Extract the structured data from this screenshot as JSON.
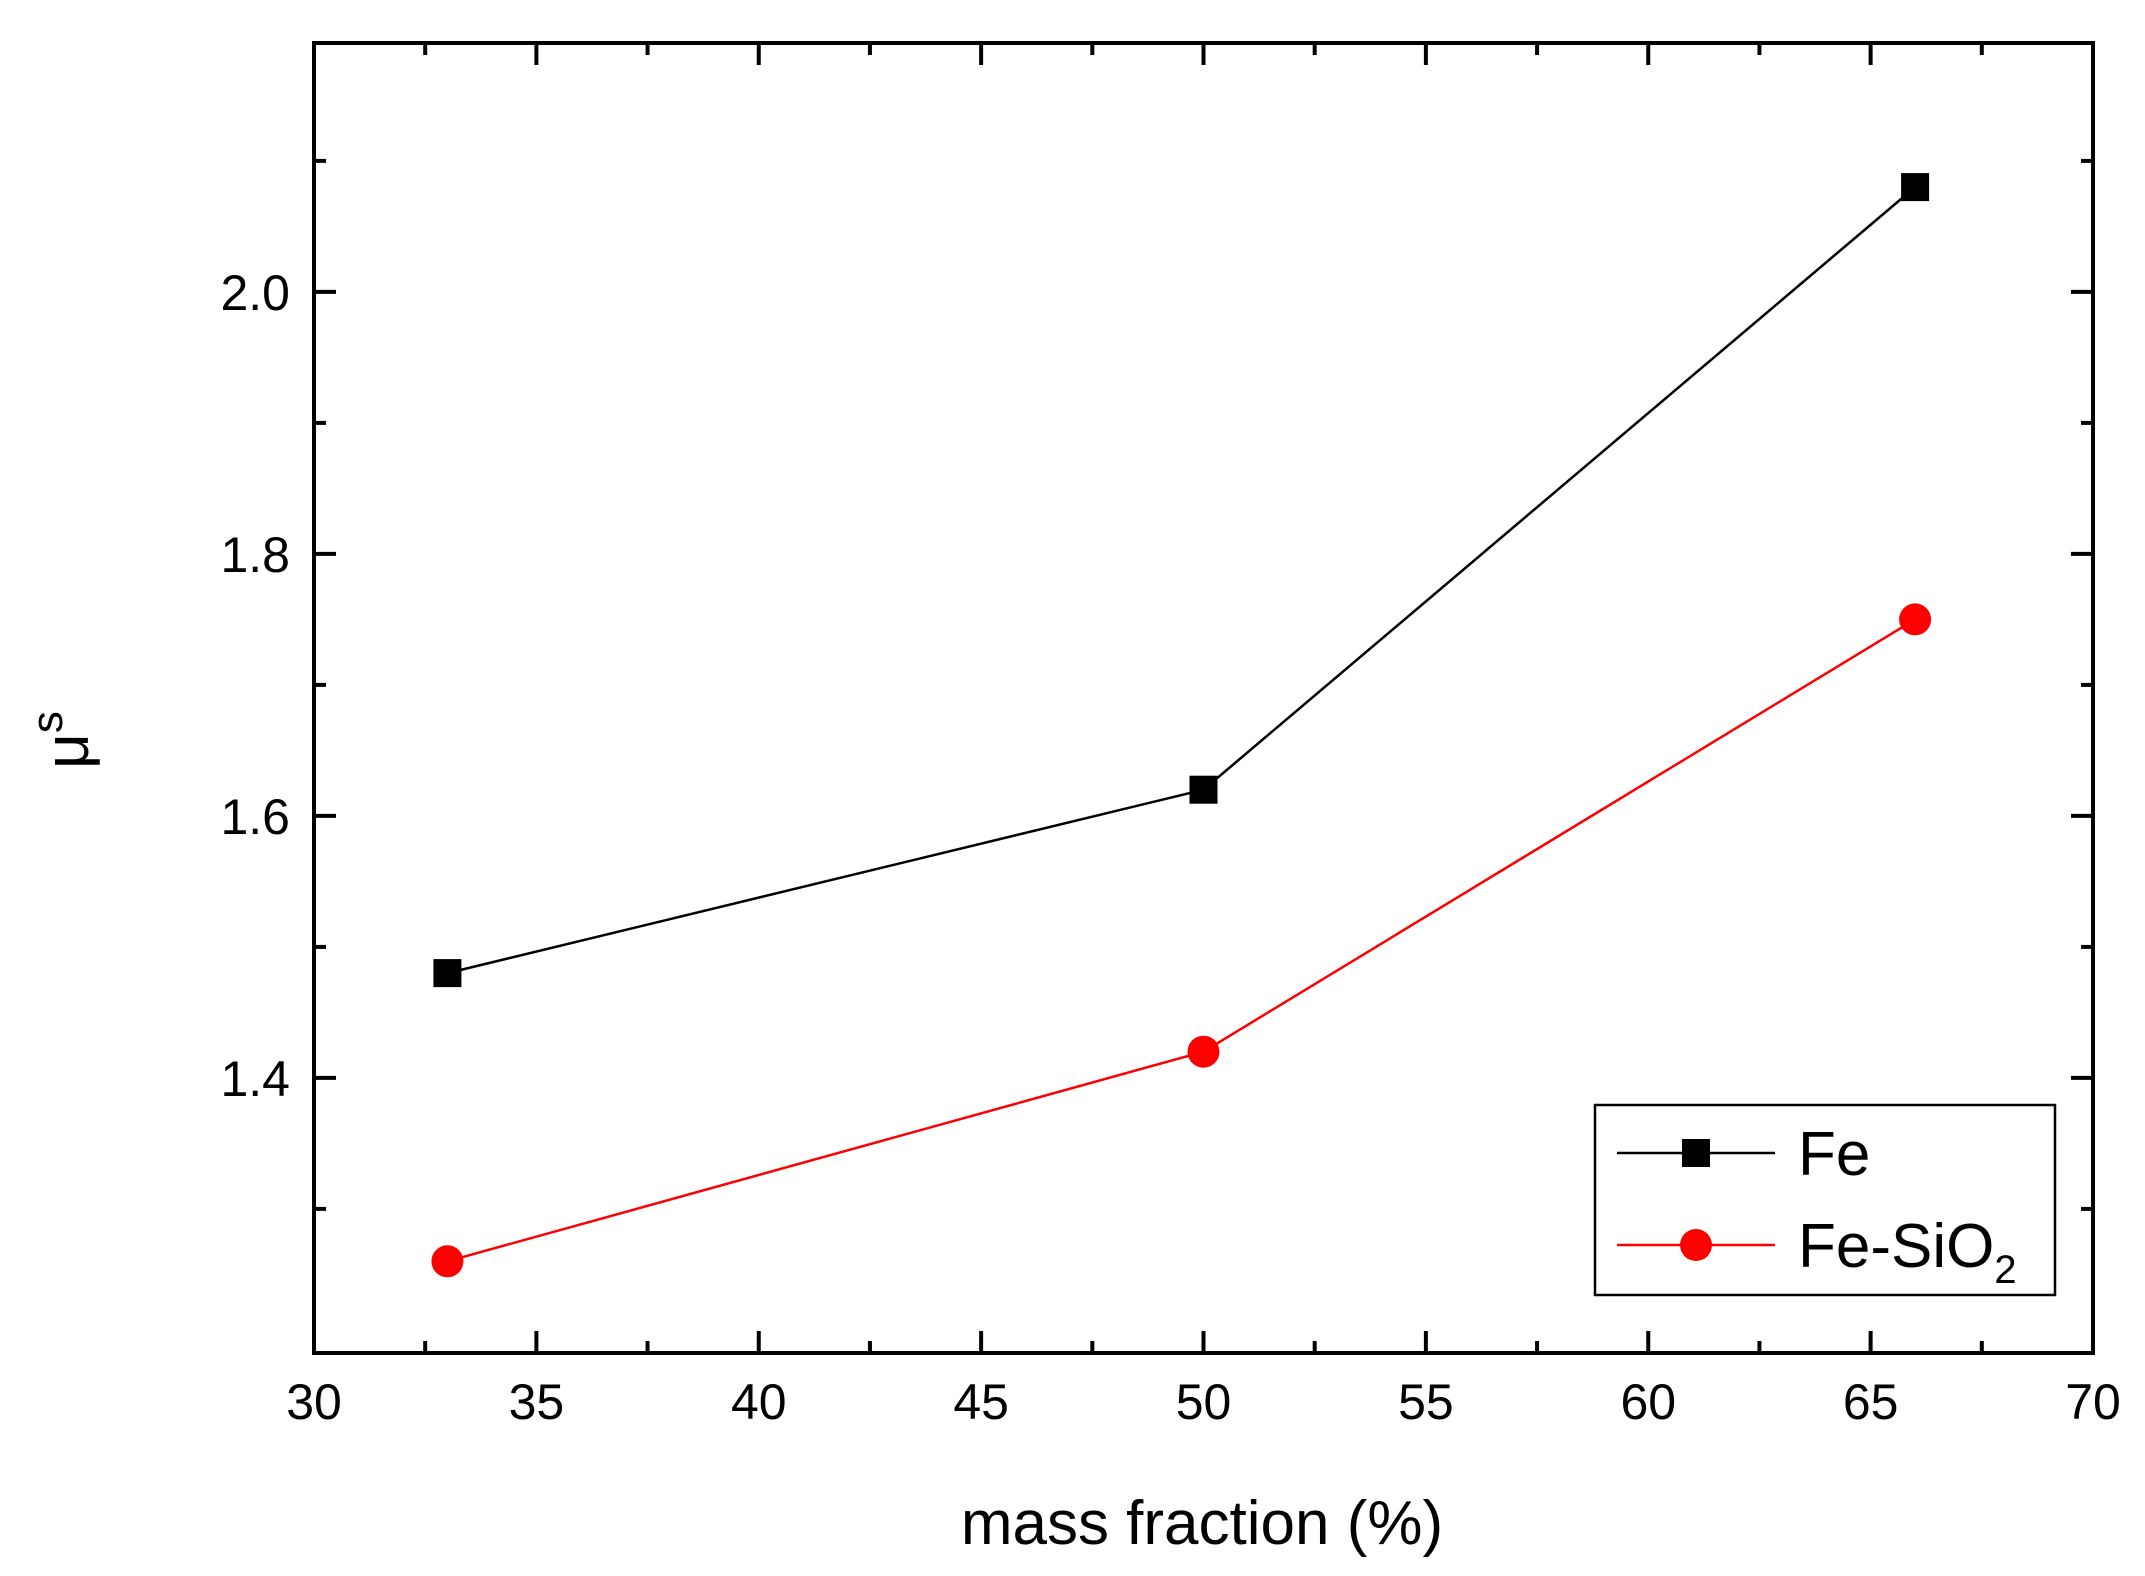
{
  "chart_data": {
    "type": "line",
    "title": "",
    "xlabel": "mass fraction (%)",
    "ylabel_main": "μ",
    "ylabel_sup": "s",
    "xlim": [
      30,
      70
    ],
    "ylim": [
      1.19,
      2.19
    ],
    "x_ticks": [
      30,
      35,
      40,
      45,
      50,
      55,
      60,
      65,
      70
    ],
    "x_minor_ticks": [
      32.5,
      37.5,
      42.5,
      47.5,
      52.5,
      57.5,
      62.5,
      67.5
    ],
    "y_ticks": [
      1.4,
      1.6,
      1.8,
      2.0
    ],
    "y_tick_labels": [
      "1.4",
      "1.6",
      "1.8",
      "2.0"
    ],
    "y_minor_ticks": [
      1.3,
      1.5,
      1.7,
      1.9,
      2.1
    ],
    "grid": false,
    "legend_position": "bottom-right",
    "series": [
      {
        "name": "Fe",
        "legend_main": "Fe",
        "legend_sub": "",
        "marker": "square",
        "color": "#000000",
        "x": [
          33,
          50,
          66
        ],
        "y": [
          1.48,
          1.62,
          2.08
        ]
      },
      {
        "name": "Fe-SiO2",
        "legend_main": "Fe-SiO",
        "legend_sub": "2",
        "marker": "circle",
        "color": "#ff0000",
        "x": [
          33,
          50,
          66
        ],
        "y": [
          1.26,
          1.42,
          1.75
        ]
      }
    ]
  }
}
